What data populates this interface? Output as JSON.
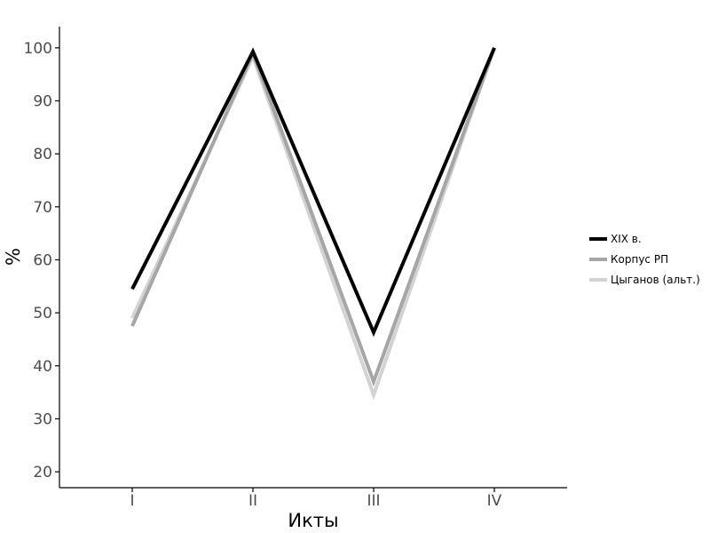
{
  "chart_data": {
    "type": "line",
    "xlabel": "Икты",
    "ylabel": "%",
    "categories": [
      "I",
      "II",
      "III",
      "IV"
    ],
    "ylim": [
      17,
      104
    ],
    "yticks": [
      20,
      30,
      40,
      50,
      60,
      70,
      80,
      90,
      100
    ],
    "grid": false,
    "legend_position": "right",
    "series": [
      {
        "name": "XIX в.",
        "color": "#000000",
        "values": [
          54.5,
          99.3,
          46.3,
          100
        ]
      },
      {
        "name": "Корпус РП",
        "color": "#a6a6a6",
        "values": [
          47.5,
          99.0,
          37.0,
          100
        ]
      },
      {
        "name": "Цыганов (альт.)",
        "color": "#d3d3d3",
        "values": [
          49.0,
          98.3,
          34.5,
          100
        ]
      }
    ]
  }
}
